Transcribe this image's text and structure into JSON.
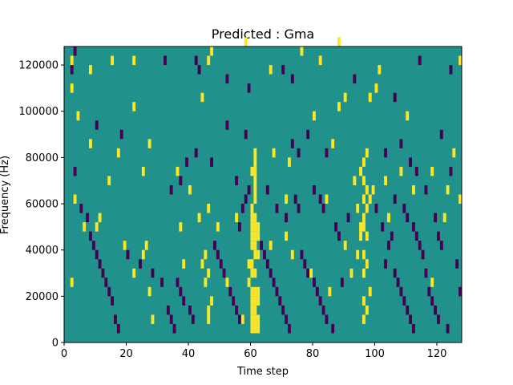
{
  "chart_data": {
    "type": "heatmap",
    "title": "Predicted : Gma",
    "xlabel": "Time step",
    "ylabel": "Frequency (Hz)",
    "xlim": [
      0,
      128
    ],
    "ylim": [
      0,
      128000
    ],
    "x_ticks": [
      0,
      20,
      40,
      60,
      80,
      100,
      120
    ],
    "y_ticks": [
      0,
      20000,
      40000,
      60000,
      80000,
      100000,
      120000
    ],
    "x_tick_labels": [
      "0",
      "20",
      "40",
      "60",
      "80",
      "100",
      "120"
    ],
    "y_tick_labels": [
      "0",
      "20000",
      "40000",
      "60000",
      "80000",
      "100000",
      "120000"
    ],
    "grid": false,
    "legend": "none",
    "colormap": "viridis",
    "values_legend": {
      "-1": "#440154",
      "0": "#21918c",
      "1": "#fde725"
    },
    "background_value": 0,
    "cells": {
      "high": [
        [
          60,
          4000
        ],
        [
          61,
          4000
        ],
        [
          62,
          4000
        ],
        [
          60,
          8000
        ],
        [
          61,
          8000
        ],
        [
          62,
          8000
        ],
        [
          60,
          12000
        ],
        [
          61,
          12000
        ],
        [
          60,
          16000
        ],
        [
          61,
          16000
        ],
        [
          62,
          16000
        ],
        [
          60,
          20000
        ],
        [
          61,
          20000
        ],
        [
          62,
          20000
        ],
        [
          59,
          24000
        ],
        [
          60,
          28000
        ],
        [
          61,
          28000
        ],
        [
          59,
          32000
        ],
        [
          60,
          32000
        ],
        [
          61,
          36000
        ],
        [
          62,
          36000
        ],
        [
          60,
          40000
        ],
        [
          61,
          40000
        ],
        [
          60,
          44000
        ],
        [
          61,
          44000
        ],
        [
          62,
          44000
        ],
        [
          60,
          48000
        ],
        [
          61,
          48000
        ],
        [
          62,
          48000
        ],
        [
          60,
          52000
        ],
        [
          61,
          52000
        ],
        [
          60,
          56000
        ],
        [
          61,
          60000
        ],
        [
          61,
          64000
        ],
        [
          61,
          68000
        ],
        [
          61,
          72000
        ],
        [
          61,
          76000
        ],
        [
          61,
          80000
        ],
        [
          96,
          28000
        ],
        [
          97,
          32000
        ],
        [
          96,
          36000
        ],
        [
          97,
          44000
        ],
        [
          96,
          48000
        ],
        [
          95,
          48000
        ],
        [
          95,
          44000
        ],
        [
          96,
          52000
        ],
        [
          97,
          56000
        ],
        [
          96,
          60000
        ],
        [
          97,
          64000
        ],
        [
          96,
          68000
        ],
        [
          95,
          72000
        ],
        [
          96,
          76000
        ],
        [
          97,
          80000
        ],
        [
          94,
          36000
        ],
        [
          98,
          60000
        ],
        [
          99,
          64000
        ],
        [
          93,
          68000
        ],
        [
          94,
          56000
        ],
        [
          97,
          12000
        ],
        [
          96,
          16000
        ],
        [
          98,
          20000
        ],
        [
          96,
          8000
        ],
        [
          45,
          24000
        ],
        [
          46,
          28000
        ],
        [
          47,
          16000
        ],
        [
          46,
          12000
        ],
        [
          46,
          8000
        ],
        [
          44,
          32000
        ],
        [
          45,
          36000
        ],
        [
          2,
          120000
        ],
        [
          15,
          120000
        ],
        [
          22,
          120000
        ],
        [
          46,
          120000
        ],
        [
          47,
          124000
        ],
        [
          58,
          128000
        ],
        [
          66,
          116000
        ],
        [
          76,
          124000
        ],
        [
          82,
          120000
        ],
        [
          88,
          128000
        ],
        [
          101,
          116000
        ],
        [
          127,
          120000
        ],
        [
          8,
          116000
        ],
        [
          2,
          108000
        ],
        [
          22,
          100000
        ],
        [
          44,
          104000
        ],
        [
          80,
          96000
        ],
        [
          88,
          100000
        ],
        [
          90,
          104000
        ],
        [
          98,
          104000
        ],
        [
          100,
          108000
        ],
        [
          110,
          96000
        ],
        [
          4,
          96000
        ],
        [
          8,
          84000
        ],
        [
          17,
          80000
        ],
        [
          27,
          84000
        ],
        [
          36,
          72000
        ],
        [
          25,
          72000
        ],
        [
          14,
          68000
        ],
        [
          60,
          72000
        ],
        [
          67,
          80000
        ],
        [
          72,
          76000
        ],
        [
          86,
          84000
        ],
        [
          103,
          68000
        ],
        [
          108,
          72000
        ],
        [
          118,
          72000
        ],
        [
          123,
          64000
        ],
        [
          125,
          80000
        ],
        [
          122,
          52000
        ],
        [
          3,
          60000
        ],
        [
          6,
          48000
        ],
        [
          10,
          48000
        ],
        [
          11,
          52000
        ],
        [
          19,
          40000
        ],
        [
          26,
          40000
        ],
        [
          25,
          36000
        ],
        [
          22,
          28000
        ],
        [
          27,
          20000
        ],
        [
          28,
          8000
        ],
        [
          37,
          48000
        ],
        [
          43,
          52000
        ],
        [
          49,
          48000
        ],
        [
          55,
          52000
        ],
        [
          71,
          44000
        ],
        [
          73,
          36000
        ],
        [
          79,
          28000
        ],
        [
          85,
          20000
        ],
        [
          90,
          40000
        ],
        [
          92,
          28000
        ],
        [
          104,
          52000
        ],
        [
          112,
          64000
        ],
        [
          127,
          60000
        ],
        [
          118,
          24000
        ],
        [
          2,
          24000
        ],
        [
          38,
          32000
        ],
        [
          40,
          64000
        ],
        [
          46,
          56000
        ],
        [
          52,
          24000
        ],
        [
          57,
          8000
        ],
        [
          66,
          40000
        ],
        [
          71,
          60000
        ],
        [
          84,
          60000
        ]
      ],
      "low": [
        [
          3,
          124000
        ],
        [
          2,
          116000
        ],
        [
          32,
          120000
        ],
        [
          42,
          120000
        ],
        [
          43,
          116000
        ],
        [
          52,
          112000
        ],
        [
          59,
          108000
        ],
        [
          70,
          116000
        ],
        [
          73,
          112000
        ],
        [
          93,
          112000
        ],
        [
          106,
          104000
        ],
        [
          114,
          120000
        ],
        [
          124,
          116000
        ],
        [
          10,
          92000
        ],
        [
          18,
          88000
        ],
        [
          52,
          92000
        ],
        [
          58,
          88000
        ],
        [
          73,
          84000
        ],
        [
          75,
          80000
        ],
        [
          78,
          88000
        ],
        [
          84,
          80000
        ],
        [
          103,
          80000
        ],
        [
          108,
          84000
        ],
        [
          111,
          76000
        ],
        [
          113,
          72000
        ],
        [
          116,
          64000
        ],
        [
          121,
          88000
        ],
        [
          124,
          72000
        ],
        [
          3,
          72000
        ],
        [
          34,
          64000
        ],
        [
          37,
          68000
        ],
        [
          39,
          76000
        ],
        [
          42,
          80000
        ],
        [
          47,
          76000
        ],
        [
          55,
          68000
        ],
        [
          65,
          64000
        ],
        [
          68,
          56000
        ],
        [
          71,
          52000
        ],
        [
          74,
          60000
        ],
        [
          75,
          56000
        ],
        [
          80,
          64000
        ],
        [
          82,
          60000
        ],
        [
          83,
          56000
        ],
        [
          87,
          48000
        ],
        [
          88,
          44000
        ],
        [
          91,
          52000
        ],
        [
          100,
          56000
        ],
        [
          102,
          48000
        ],
        [
          105,
          44000
        ],
        [
          104,
          40000
        ],
        [
          106,
          60000
        ],
        [
          109,
          56000
        ],
        [
          110,
          52000
        ],
        [
          112,
          48000
        ],
        [
          113,
          44000
        ],
        [
          114,
          40000
        ],
        [
          115,
          36000
        ],
        [
          119,
          52000
        ],
        [
          120,
          44000
        ],
        [
          121,
          40000
        ],
        [
          126,
          32000
        ],
        [
          127,
          20000
        ],
        [
          5,
          56000
        ],
        [
          7,
          52000
        ],
        [
          8,
          44000
        ],
        [
          9,
          40000
        ],
        [
          10,
          36000
        ],
        [
          11,
          32000
        ],
        [
          12,
          28000
        ],
        [
          13,
          24000
        ],
        [
          14,
          20000
        ],
        [
          15,
          16000
        ],
        [
          16,
          8000
        ],
        [
          17,
          4000
        ],
        [
          20,
          36000
        ],
        [
          24,
          32000
        ],
        [
          28,
          28000
        ],
        [
          31,
          24000
        ],
        [
          33,
          12000
        ],
        [
          34,
          8000
        ],
        [
          35,
          4000
        ],
        [
          38,
          16000
        ],
        [
          40,
          12000
        ],
        [
          41,
          8000
        ],
        [
          48,
          40000
        ],
        [
          49,
          36000
        ],
        [
          50,
          32000
        ],
        [
          51,
          28000
        ],
        [
          53,
          20000
        ],
        [
          54,
          16000
        ],
        [
          55,
          12000
        ],
        [
          56,
          8000
        ],
        [
          63,
          40000
        ],
        [
          64,
          36000
        ],
        [
          65,
          32000
        ],
        [
          66,
          28000
        ],
        [
          67,
          24000
        ],
        [
          68,
          20000
        ],
        [
          69,
          16000
        ],
        [
          70,
          12000
        ],
        [
          71,
          8000
        ],
        [
          72,
          4000
        ],
        [
          76,
          36000
        ],
        [
          77,
          32000
        ],
        [
          78,
          28000
        ],
        [
          80,
          24000
        ],
        [
          81,
          20000
        ],
        [
          82,
          16000
        ],
        [
          83,
          12000
        ],
        [
          84,
          8000
        ],
        [
          86,
          4000
        ],
        [
          89,
          24000
        ],
        [
          103,
          32000
        ],
        [
          106,
          28000
        ],
        [
          107,
          24000
        ],
        [
          108,
          20000
        ],
        [
          109,
          16000
        ],
        [
          110,
          12000
        ],
        [
          111,
          8000
        ],
        [
          112,
          4000
        ],
        [
          116,
          28000
        ],
        [
          117,
          20000
        ],
        [
          118,
          16000
        ],
        [
          119,
          12000
        ],
        [
          120,
          8000
        ],
        [
          123,
          4000
        ],
        [
          36,
          24000
        ],
        [
          37,
          20000
        ],
        [
          57,
          56000
        ],
        [
          56,
          48000
        ],
        [
          58,
          60000
        ],
        [
          59,
          64000
        ]
      ]
    }
  }
}
